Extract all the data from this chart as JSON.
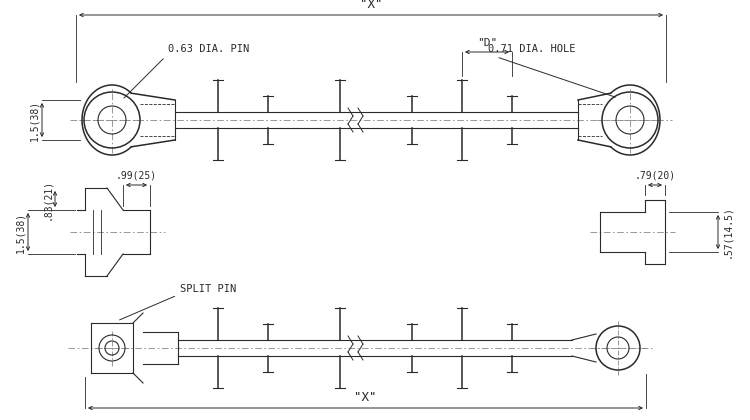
{
  "bg_color": "#ffffff",
  "line_color": "#2a2a2a",
  "dim_color": "#2a2a2a",
  "centerline_color": "#888888",
  "labels": {
    "X_top": "\"X\"",
    "X_bottom": "\"X\"",
    "D": "\"D\"",
    "pin_dia": "0.63 DIA. PIN",
    "hole_dia": "0.71 DIA. HOLE",
    "dim_1_5_38": "1.5(38)",
    "dim_83_21": ".83(21)",
    "dim_99_25": ".99(25)",
    "dim_1_5_38b": "1.5(38)",
    "dim_79_20": ".79(20)",
    "dim_57_145": ".57(14.5)",
    "split_pin": "SPLIT PIN"
  }
}
